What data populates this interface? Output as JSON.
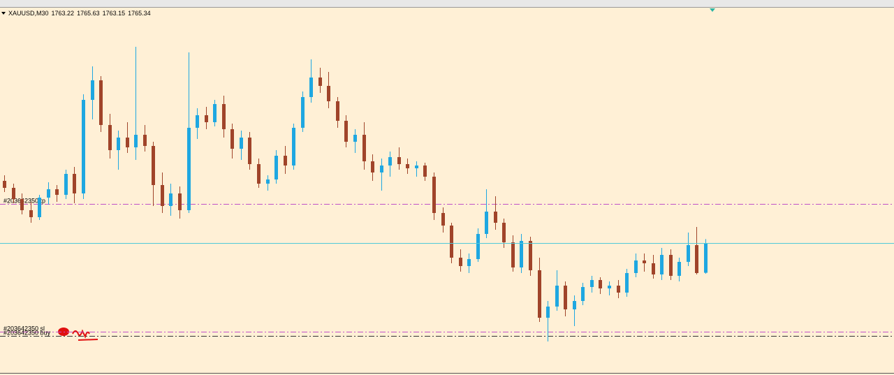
{
  "chart_data": {
    "type": "candlestick",
    "symbol": "XAUUSD,M30",
    "up_color": "#1ea7e1",
    "down_color": "#a0442a",
    "background": "#fff0d6",
    "bid_color": "#4fc9d9",
    "ylim": [
      1756,
      1782.15
    ],
    "candles": [
      [
        1769.8,
        1770.2,
        1769.0,
        1769.3
      ],
      [
        1769.3,
        1769.6,
        1768.2,
        1768.5
      ],
      [
        1768.5,
        1768.9,
        1767.4,
        1767.7
      ],
      [
        1767.7,
        1768.3,
        1766.8,
        1767.2
      ],
      [
        1767.2,
        1768.8,
        1767.0,
        1768.6
      ],
      [
        1768.6,
        1769.7,
        1768.1,
        1769.2
      ],
      [
        1769.2,
        1769.5,
        1768.3,
        1768.8
      ],
      [
        1768.8,
        1770.6,
        1768.5,
        1770.3
      ],
      [
        1770.3,
        1770.8,
        1768.2,
        1768.9
      ],
      [
        1768.9,
        1776.0,
        1768.5,
        1775.6
      ],
      [
        1775.6,
        1778.0,
        1774.2,
        1777.0
      ],
      [
        1777.0,
        1777.3,
        1773.3,
        1773.8
      ],
      [
        1773.8,
        1774.6,
        1771.4,
        1772.0
      ],
      [
        1772.0,
        1773.4,
        1770.6,
        1772.9
      ],
      [
        1772.9,
        1774.0,
        1771.8,
        1772.2
      ],
      [
        1772.2,
        1779.4,
        1771.3,
        1773.1
      ],
      [
        1773.1,
        1773.8,
        1771.9,
        1772.3
      ],
      [
        1772.3,
        1772.6,
        1768.0,
        1769.5
      ],
      [
        1769.5,
        1770.4,
        1767.5,
        1768.0
      ],
      [
        1768.0,
        1769.6,
        1767.3,
        1768.9
      ],
      [
        1768.9,
        1769.4,
        1767.1,
        1767.7
      ],
      [
        1767.7,
        1779.0,
        1767.5,
        1773.6
      ],
      [
        1773.6,
        1775.0,
        1772.8,
        1774.5
      ],
      [
        1774.5,
        1775.1,
        1773.5,
        1774.0
      ],
      [
        1774.0,
        1775.6,
        1773.7,
        1775.3
      ],
      [
        1775.3,
        1775.9,
        1772.9,
        1773.5
      ],
      [
        1773.5,
        1773.9,
        1771.4,
        1772.1
      ],
      [
        1772.1,
        1773.4,
        1771.3,
        1772.9
      ],
      [
        1772.9,
        1773.3,
        1770.6,
        1771.0
      ],
      [
        1771.0,
        1771.4,
        1769.3,
        1769.6
      ],
      [
        1769.6,
        1770.2,
        1769.1,
        1769.9
      ],
      [
        1769.9,
        1772.0,
        1769.6,
        1771.6
      ],
      [
        1771.6,
        1772.3,
        1770.3,
        1770.9
      ],
      [
        1770.9,
        1773.9,
        1770.6,
        1773.6
      ],
      [
        1773.6,
        1776.2,
        1773.3,
        1775.8
      ],
      [
        1775.8,
        1778.5,
        1775.4,
        1777.2
      ],
      [
        1777.2,
        1777.9,
        1776.1,
        1776.6
      ],
      [
        1776.6,
        1777.6,
        1775.0,
        1775.5
      ],
      [
        1775.5,
        1775.8,
        1773.6,
        1774.1
      ],
      [
        1774.1,
        1774.5,
        1772.2,
        1772.6
      ],
      [
        1772.6,
        1773.5,
        1771.8,
        1773.1
      ],
      [
        1773.1,
        1774.0,
        1770.6,
        1771.2
      ],
      [
        1771.2,
        1771.7,
        1769.8,
        1770.4
      ],
      [
        1770.4,
        1771.4,
        1769.1,
        1770.9
      ],
      [
        1770.9,
        1771.9,
        1770.1,
        1771.5
      ],
      [
        1771.5,
        1772.2,
        1770.6,
        1771.0
      ],
      [
        1771.0,
        1771.4,
        1770.3,
        1770.7
      ],
      [
        1770.7,
        1771.2,
        1770.1,
        1770.9
      ],
      [
        1770.9,
        1771.1,
        1769.8,
        1770.1
      ],
      [
        1770.1,
        1770.4,
        1767.0,
        1767.5
      ],
      [
        1767.5,
        1767.9,
        1766.1,
        1766.6
      ],
      [
        1766.6,
        1766.8,
        1763.9,
        1764.3
      ],
      [
        1764.3,
        1764.9,
        1763.3,
        1763.7
      ],
      [
        1763.7,
        1764.6,
        1763.2,
        1764.2
      ],
      [
        1764.2,
        1766.4,
        1764.0,
        1766.0
      ],
      [
        1766.0,
        1769.2,
        1765.7,
        1767.6
      ],
      [
        1767.6,
        1768.7,
        1766.3,
        1766.8
      ],
      [
        1766.8,
        1767.1,
        1765.0,
        1765.4
      ],
      [
        1765.4,
        1765.9,
        1763.3,
        1763.6
      ],
      [
        1763.6,
        1766.0,
        1763.2,
        1765.5
      ],
      [
        1765.5,
        1765.8,
        1763.0,
        1763.4
      ],
      [
        1763.4,
        1764.3,
        1759.7,
        1760.0
      ],
      [
        1760.0,
        1761.2,
        1758.3,
        1760.8
      ],
      [
        1760.8,
        1763.4,
        1760.5,
        1762.3
      ],
      [
        1762.3,
        1762.6,
        1760.1,
        1760.6
      ],
      [
        1760.6,
        1761.6,
        1759.4,
        1761.2
      ],
      [
        1761.2,
        1762.5,
        1760.9,
        1762.2
      ],
      [
        1762.2,
        1763.0,
        1761.8,
        1762.7
      ],
      [
        1762.7,
        1762.9,
        1761.7,
        1762.1
      ],
      [
        1762.1,
        1762.6,
        1761.6,
        1762.3
      ],
      [
        1762.3,
        1762.7,
        1761.4,
        1761.8
      ],
      [
        1761.8,
        1763.5,
        1761.5,
        1763.2
      ],
      [
        1763.2,
        1764.6,
        1762.9,
        1764.1
      ],
      [
        1764.1,
        1764.6,
        1763.3,
        1763.9
      ],
      [
        1763.9,
        1764.5,
        1762.8,
        1763.1
      ],
      [
        1763.1,
        1765.0,
        1762.7,
        1764.5
      ],
      [
        1764.5,
        1764.9,
        1762.7,
        1763.0
      ],
      [
        1763.0,
        1764.3,
        1762.6,
        1764.0
      ],
      [
        1764.0,
        1766.1,
        1763.7,
        1765.2
      ],
      [
        1765.2,
        1766.5,
        1763.1,
        1763.2
      ],
      [
        1763.22,
        1765.63,
        1763.15,
        1765.34
      ]
    ],
    "levels": [
      {
        "label": "#203642350 tp",
        "value": 1768.15,
        "color": "#c050c8"
      },
      {
        "label": "#203642350 sl",
        "value": 1759.0,
        "color": "#c050c8"
      },
      {
        "label": "#203642350 buy",
        "value": 1758.7,
        "color": "#333333"
      }
    ]
  }
}
